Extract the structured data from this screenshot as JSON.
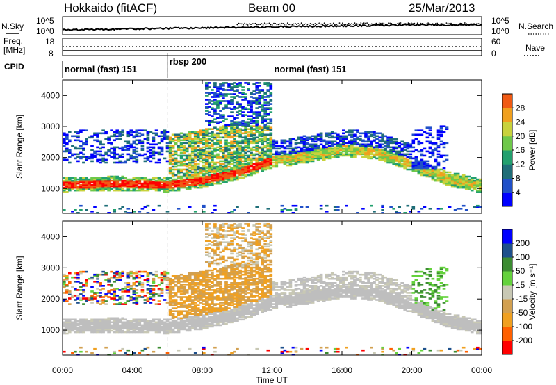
{
  "header": {
    "radar": "Hokkaido (fitACF)",
    "beam": "Beam 00",
    "date": "25/Mar/2013"
  },
  "top_panels": {
    "nsky_label": "N.Sky",
    "nsearch_label": "N.Search",
    "freq_label_line1": "Freq.",
    "freq_label_line2": "[MHz]",
    "nave_label": "Nave",
    "cpid_label": "CPID",
    "noise_ticks_left": [
      "10^5",
      "10^0"
    ],
    "noise_ticks_right": [
      "10^5",
      "10^0"
    ],
    "freq_ticks": [
      "18",
      "8"
    ],
    "nave_ticks": [
      "60",
      "0"
    ]
  },
  "cpid_segments": [
    {
      "label": "normal (fast) 151",
      "start_hour": 0,
      "end_hour": 6
    },
    {
      "label": "rbsp 200",
      "start_hour": 6,
      "end_hour": 12
    },
    {
      "label": "normal (fast) 151",
      "start_hour": 12,
      "end_hour": 24
    }
  ],
  "colors": {
    "power": [
      "#0000ff",
      "#2050c8",
      "#1f6e78",
      "#22a06e",
      "#6ec84a",
      "#c8d23c",
      "#f0a01e",
      "#f05a14",
      "#ff0000"
    ],
    "velocity": [
      "#ff0000",
      "#ff6000",
      "#f0a020",
      "#d2a050",
      "#c8c8b4",
      "#64d23c",
      "#3c8c32",
      "#1e508c",
      "#0000ff"
    ],
    "ground_scatter": "#bebebe"
  },
  "chart_data": [
    {
      "type": "heatmap",
      "name": "power",
      "xlabel": "",
      "ylabel": "Slant Range [km]",
      "xlim": [
        0,
        24
      ],
      "ylim": [
        200,
        4500
      ],
      "x_ticks": [
        "00:00",
        "04:00",
        "08:00",
        "12:00",
        "16:00",
        "20:00",
        "00:00"
      ],
      "y_ticks": [
        1000,
        2000,
        3000,
        4000
      ],
      "colorbar_label": "Power [dB]",
      "colorbar_ticks": [
        4,
        8,
        12,
        16,
        20,
        24,
        28
      ],
      "colorbar_range": [
        0,
        32
      ],
      "main_band_km": [
        [
          0,
          1100
        ],
        [
          3,
          1150
        ],
        [
          6,
          1100
        ],
        [
          8,
          1250
        ],
        [
          10,
          1500
        ],
        [
          12,
          1900
        ],
        [
          13,
          1950
        ],
        [
          16,
          2250
        ],
        [
          18,
          2150
        ],
        [
          20,
          1750
        ],
        [
          22,
          1300
        ],
        [
          24,
          1050
        ]
      ]
    },
    {
      "type": "heatmap",
      "name": "velocity",
      "xlabel": "Time UT",
      "ylabel": "Slant Range [km]",
      "xlim": [
        0,
        24
      ],
      "ylim": [
        200,
        4500
      ],
      "x_ticks": [
        "00:00",
        "04:00",
        "08:00",
        "12:00",
        "16:00",
        "20:00",
        "00:00"
      ],
      "y_ticks": [
        1000,
        2000,
        3000,
        4000
      ],
      "colorbar_label": "Velocity [m s⁻¹]",
      "colorbar_ticks": [
        200,
        100,
        50,
        15,
        -15,
        -50,
        -100,
        -200
      ]
    }
  ]
}
